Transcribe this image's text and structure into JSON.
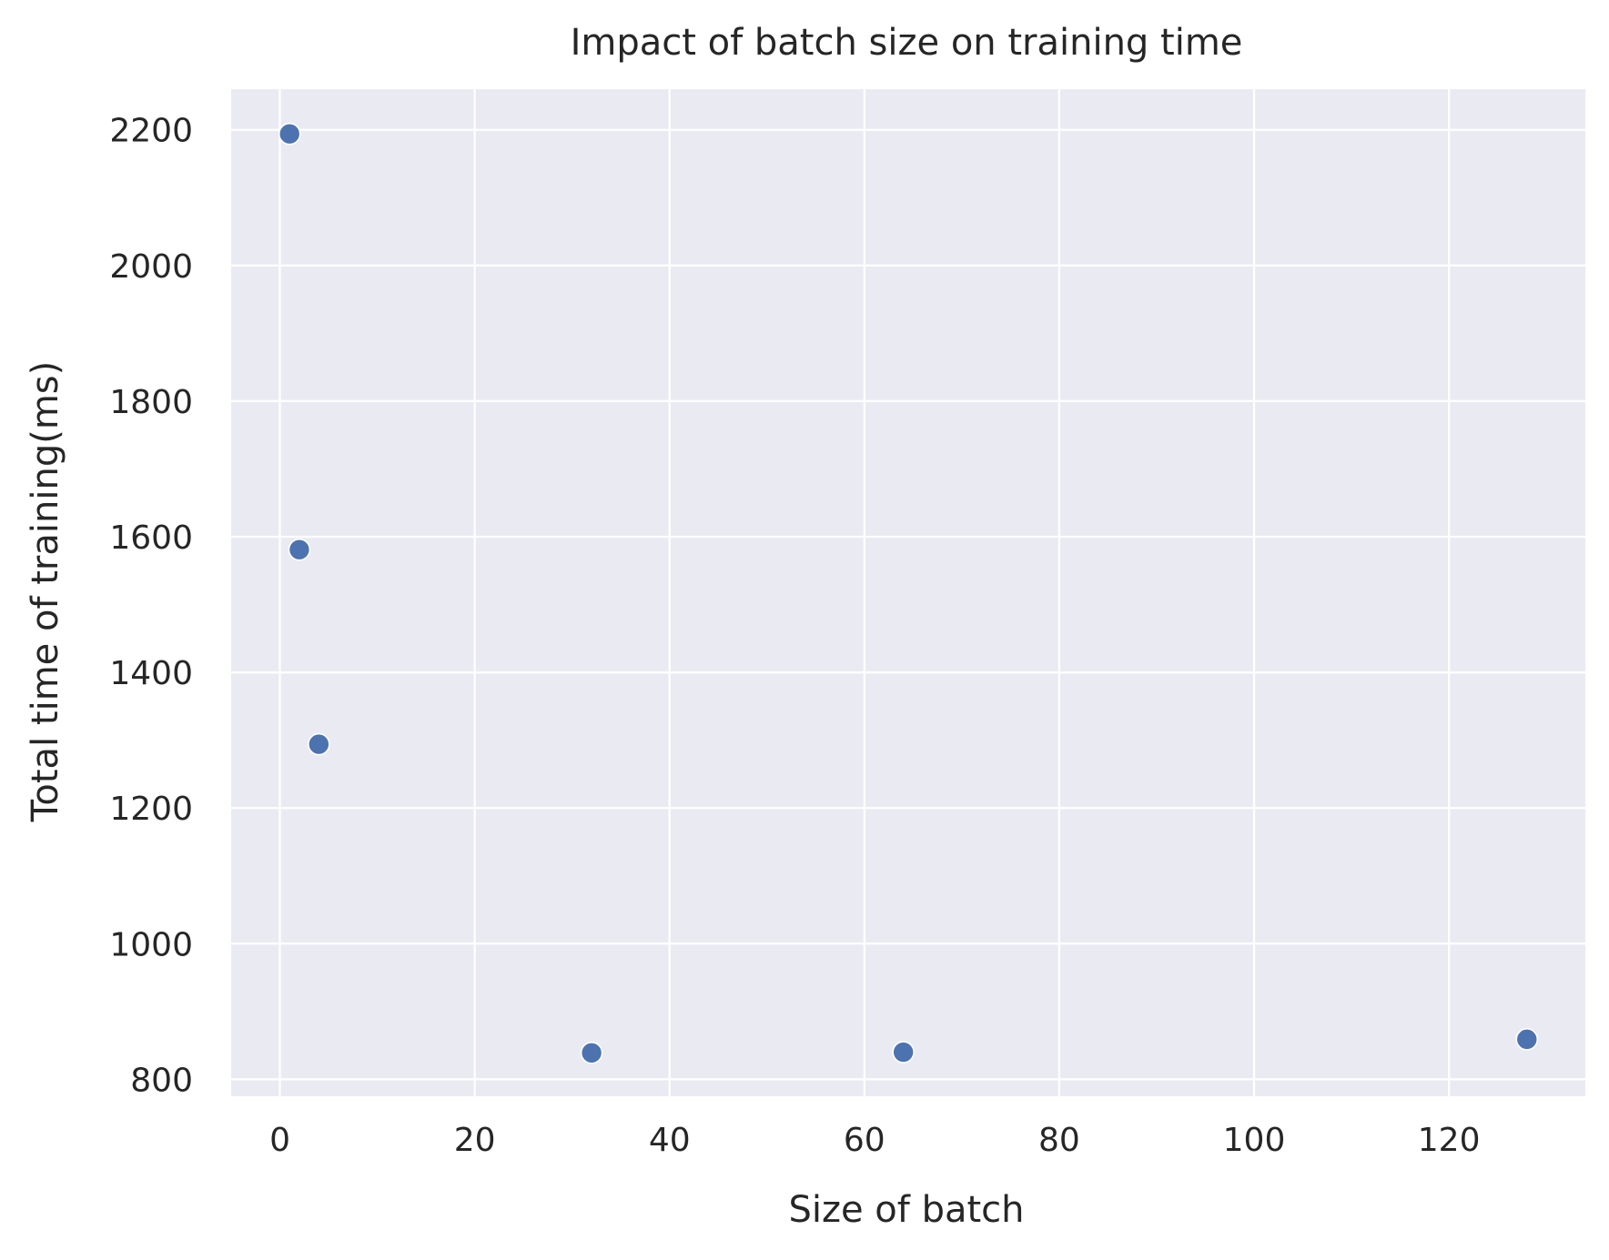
{
  "chart_data": {
    "type": "scatter",
    "title": "Impact of batch size on training time",
    "xlabel": "Size of batch",
    "ylabel": "Total time of training(ms)",
    "xlim": [
      -5,
      134
    ],
    "ylim": [
      775,
      2260
    ],
    "xticks": [
      0,
      20,
      40,
      60,
      80,
      100,
      120
    ],
    "yticks": [
      800,
      1000,
      1200,
      1400,
      1600,
      1800,
      2000,
      2200
    ],
    "grid": true,
    "legend": "none",
    "series": [
      {
        "x": [
          1,
          2,
          4,
          32,
          64,
          128
        ],
        "y": [
          2194,
          1581,
          1294,
          839,
          840,
          859
        ]
      }
    ],
    "colors": {
      "background": "#EAEAF2",
      "grid": "#FFFFFF",
      "marker": "#4C72B0",
      "marker_edge": "#FFFFFF",
      "text": "#262626"
    }
  }
}
